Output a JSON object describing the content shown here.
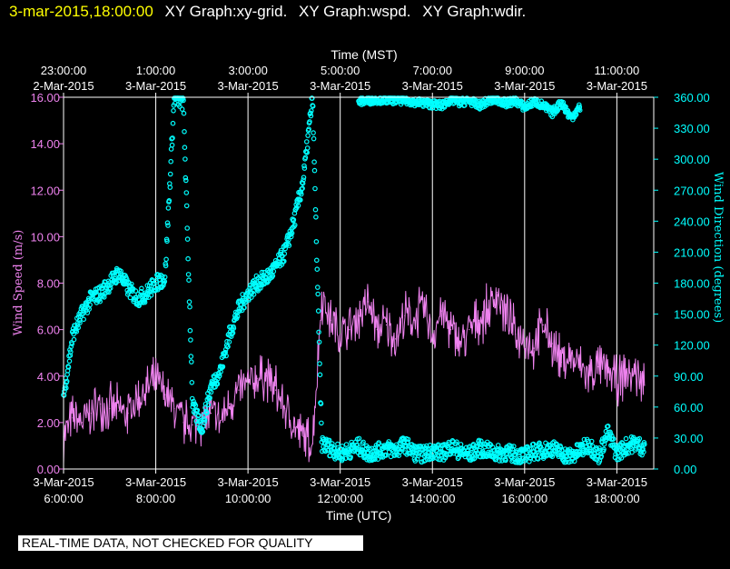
{
  "header": {
    "timestamp": "3-mar-2015,18:00:00",
    "graphs": [
      "XY Graph:xy-grid.",
      "XY Graph:wspd.",
      "XY Graph:wdir."
    ]
  },
  "footer": {
    "disclaimer": "REAL-TIME DATA, NOT CHECKED FOR QUALITY"
  },
  "colors": {
    "speed": "#ee82ee",
    "direction": "#00ffff",
    "axis": "#ffffff",
    "grid": "#ffffff"
  },
  "chart_data": {
    "type": "line",
    "x_top_label": "Time (MST)",
    "x_bottom_label": "Time (UTC)",
    "xlim_utc_hours": [
      6,
      18.8
    ],
    "x_ticks_utc": [
      {
        "h": 6,
        "date": "3-Mar-2015",
        "time": "6:00:00"
      },
      {
        "h": 8,
        "date": "3-Mar-2015",
        "time": "8:00:00"
      },
      {
        "h": 10,
        "date": "3-Mar-2015",
        "time": "10:00:00"
      },
      {
        "h": 12,
        "date": "3-Mar-2015",
        "time": "12:00:00"
      },
      {
        "h": 14,
        "date": "3-Mar-2015",
        "time": "14:00:00"
      },
      {
        "h": 16,
        "date": "3-Mar-2015",
        "time": "16:00:00"
      },
      {
        "h": 18,
        "date": "3-Mar-2015",
        "time": "18:00:00"
      }
    ],
    "x_ticks_mst": [
      {
        "h": 6,
        "time": "23:00:00",
        "date": "2-Mar-2015"
      },
      {
        "h": 8,
        "time": "1:00:00",
        "date": "3-Mar-2015"
      },
      {
        "h": 10,
        "time": "3:00:00",
        "date": "3-Mar-2015"
      },
      {
        "h": 12,
        "time": "5:00:00",
        "date": "3-Mar-2015"
      },
      {
        "h": 14,
        "time": "7:00:00",
        "date": "3-Mar-2015"
      },
      {
        "h": 16,
        "time": "9:00:00",
        "date": "3-Mar-2015"
      },
      {
        "h": 18,
        "time": "11:00:00",
        "date": "3-Mar-2015"
      }
    ],
    "y_left": {
      "label": "Wind Speed (m/s)",
      "lim": [
        0,
        16
      ],
      "ticks": [
        "0.00",
        "2.00",
        "4.00",
        "6.00",
        "8.00",
        "10.00",
        "12.00",
        "14.00",
        "16.00"
      ]
    },
    "y_right": {
      "label": "Wind Direction (degrees)",
      "lim": [
        0,
        360
      ],
      "ticks": [
        "0.00",
        "30.00",
        "60.00",
        "90.00",
        "120.00",
        "150.00",
        "180.00",
        "210.00",
        "240.00",
        "270.00",
        "300.00",
        "330.00",
        "360.00"
      ]
    },
    "series": [
      {
        "name": "wspd",
        "axis": "left",
        "style": "line",
        "x": [
          6.0,
          6.2,
          6.4,
          6.6,
          6.8,
          7.0,
          7.2,
          7.4,
          7.6,
          7.8,
          8.0,
          8.2,
          8.4,
          8.6,
          8.8,
          9.0,
          9.2,
          9.4,
          9.6,
          9.8,
          10.0,
          10.2,
          10.4,
          10.6,
          10.8,
          11.0,
          11.2,
          11.4,
          11.6,
          11.8,
          12.0,
          12.2,
          12.4,
          12.6,
          12.8,
          13.0,
          13.2,
          13.4,
          13.6,
          13.8,
          14.0,
          14.2,
          14.4,
          14.6,
          14.8,
          15.0,
          15.2,
          15.4,
          15.6,
          15.8,
          16.0,
          16.2,
          16.4,
          16.6,
          16.8,
          17.0,
          17.2,
          17.4,
          17.6,
          17.8,
          18.0,
          18.2,
          18.4,
          18.6
        ],
        "y": [
          1.4,
          2.2,
          2.0,
          2.4,
          2.8,
          2.6,
          2.5,
          2.4,
          3.0,
          3.4,
          3.8,
          3.2,
          2.6,
          2.0,
          1.9,
          2.1,
          2.4,
          2.0,
          2.8,
          3.4,
          3.6,
          3.9,
          4.0,
          3.4,
          2.6,
          1.8,
          1.4,
          1.1,
          7.4,
          6.4,
          5.8,
          6.0,
          6.6,
          7.2,
          6.0,
          6.2,
          5.6,
          6.6,
          6.4,
          7.0,
          5.8,
          6.8,
          6.0,
          5.4,
          6.0,
          6.4,
          6.8,
          7.6,
          6.6,
          5.8,
          5.6,
          5.2,
          6.2,
          5.4,
          4.6,
          4.8,
          4.4,
          4.0,
          4.4,
          4.2,
          3.8,
          4.0,
          4.2,
          3.6
        ],
        "noise": 0.9
      },
      {
        "name": "wdir",
        "axis": "right",
        "style": "markers",
        "x": [
          6.0,
          6.2,
          6.4,
          6.6,
          6.8,
          7.0,
          7.2,
          7.4,
          7.6,
          7.8,
          8.0,
          8.2,
          8.4,
          8.6,
          8.8,
          9.0,
          9.2,
          9.4,
          9.6,
          9.8,
          10.0,
          10.2,
          10.4,
          10.6,
          10.8,
          11.0,
          11.2,
          11.4,
          11.6,
          11.8,
          12.0,
          12.2,
          12.4,
          12.6,
          12.8,
          13.0,
          13.2,
          13.4,
          13.6,
          13.8,
          14.0,
          14.2,
          14.4,
          14.6,
          14.8,
          15.0,
          15.2,
          15.4,
          15.6,
          15.8,
          16.0,
          16.2,
          16.4,
          16.6,
          16.8,
          17.0,
          17.2,
          17.4,
          17.6,
          17.8,
          18.0,
          18.2,
          18.4,
          18.6
        ],
        "y": [
          70,
          130,
          150,
          165,
          170,
          180,
          190,
          175,
          165,
          170,
          180,
          185,
          360,
          355,
          60,
          40,
          80,
          95,
          130,
          155,
          170,
          180,
          185,
          195,
          210,
          240,
          280,
          360,
          25,
          20,
          15,
          18,
          22,
          15,
          17,
          20,
          18,
          24,
          16,
          14,
          18,
          15,
          22,
          17,
          14,
          20,
          18,
          15,
          16,
          14,
          13,
          17,
          18,
          20,
          15,
          12,
          18,
          24,
          12,
          35,
          15,
          22,
          25,
          20
        ],
        "noise": 8
      },
      {
        "name": "wdir-wrap",
        "axis": "right",
        "style": "markers",
        "x": [
          12.4,
          12.8,
          13.4,
          14.2,
          14.4,
          14.6,
          14.8,
          15.0,
          15.2,
          15.4,
          15.6,
          15.8,
          16.0,
          16.2,
          16.4,
          16.6,
          16.8,
          17.0,
          17.2
        ],
        "y": [
          356,
          358,
          357,
          352,
          358,
          355,
          357,
          352,
          356,
          358,
          354,
          357,
          350,
          356,
          352,
          345,
          355,
          340,
          350
        ],
        "noise": 4
      }
    ]
  }
}
